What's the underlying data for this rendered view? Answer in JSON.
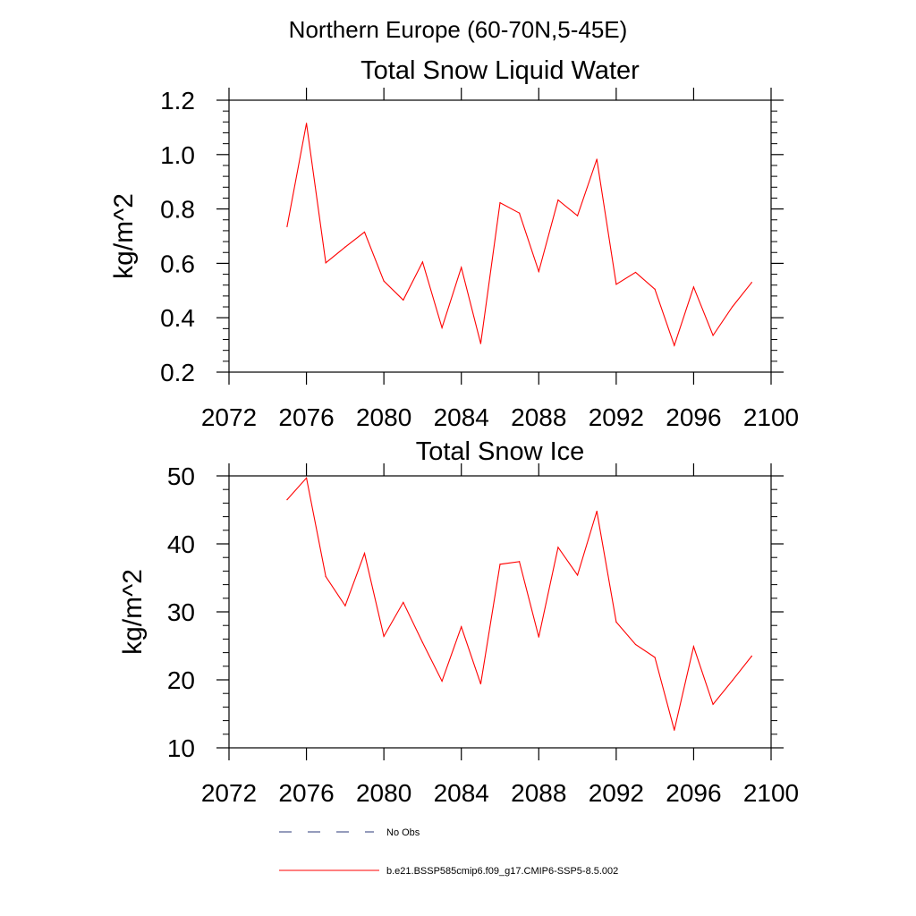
{
  "figure_title": "Northern Europe (60-70N,5-45E)",
  "chart_data": [
    {
      "type": "line",
      "title": "Total Snow Liquid Water",
      "xlabel": "",
      "ylabel": "kg/m^2",
      "xlim": [
        2072,
        2100
      ],
      "ylim": [
        0.2,
        1.2
      ],
      "xticks": [
        2072,
        2076,
        2080,
        2084,
        2088,
        2092,
        2096,
        2100
      ],
      "xtick_labels": [
        "2072",
        "2076",
        "2080",
        "2084",
        "2088",
        "2092",
        "2096",
        "2100"
      ],
      "yticks": [
        0.2,
        0.4,
        0.6,
        0.8,
        1.0,
        1.2
      ],
      "ytick_labels": [
        "0.2",
        "0.4",
        "0.6",
        "0.8",
        "1.0",
        "1.2"
      ],
      "grid": false,
      "series": [
        {
          "name": "b.e21.BSSP585cmip6.f09_g17.CMIP6-SSP5-8.5.002",
          "color": "#ff0000",
          "x": [
            2075,
            2076,
            2077,
            2078,
            2079,
            2080,
            2081,
            2082,
            2083,
            2084,
            2085,
            2086,
            2087,
            2088,
            2089,
            2090,
            2091,
            2092,
            2093,
            2094,
            2095,
            2096,
            2097,
            2098,
            2099
          ],
          "y": [
            0.735,
            1.115,
            0.602,
            0.66,
            0.715,
            0.535,
            0.465,
            0.605,
            0.363,
            0.585,
            0.305,
            0.823,
            0.785,
            0.57,
            0.833,
            0.775,
            0.983,
            0.523,
            0.567,
            0.505,
            0.298,
            0.513,
            0.335,
            0.44,
            0.53
          ]
        }
      ]
    },
    {
      "type": "line",
      "title": "Total Snow Ice",
      "xlabel": "",
      "ylabel": "kg/m^2",
      "xlim": [
        2072,
        2100
      ],
      "ylim": [
        10,
        50
      ],
      "xticks": [
        2072,
        2076,
        2080,
        2084,
        2088,
        2092,
        2096,
        2100
      ],
      "xtick_labels": [
        "2072",
        "2076",
        "2080",
        "2084",
        "2088",
        "2092",
        "2096",
        "2100"
      ],
      "yticks": [
        10,
        20,
        30,
        40,
        50
      ],
      "ytick_labels": [
        "10",
        "20",
        "30",
        "40",
        "50"
      ],
      "grid": false,
      "series": [
        {
          "name": "b.e21.BSSP585cmip6.f09_g17.CMIP6-SSP5-8.5.002",
          "color": "#ff0000",
          "x": [
            2075,
            2076,
            2077,
            2078,
            2079,
            2080,
            2081,
            2082,
            2083,
            2084,
            2085,
            2086,
            2087,
            2088,
            2089,
            2090,
            2091,
            2092,
            2093,
            2094,
            2095,
            2096,
            2097,
            2098,
            2099
          ],
          "y": [
            46.5,
            49.7,
            35.2,
            30.9,
            38.6,
            26.4,
            31.4,
            25.5,
            19.8,
            27.8,
            19.4,
            37.0,
            37.4,
            26.3,
            39.5,
            35.4,
            44.8,
            28.5,
            25.2,
            23.3,
            12.6,
            24.9,
            16.4,
            19.9,
            23.5
          ]
        }
      ]
    }
  ],
  "legend": {
    "placement": "bottom",
    "entries": [
      {
        "label": "No Obs",
        "style": "dashed",
        "color": "#2b3a7a"
      },
      {
        "label": "b.e21.BSSP585cmip6.f09_g17.CMIP6-SSP5-8.5.002",
        "style": "solid",
        "color": "#ff0000"
      }
    ]
  }
}
